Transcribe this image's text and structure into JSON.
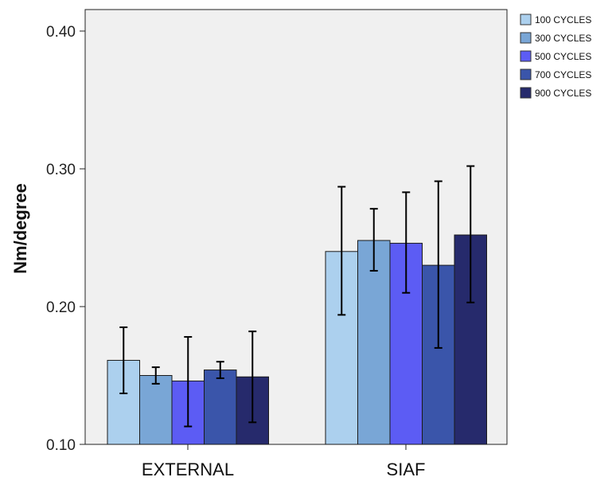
{
  "chart_data": {
    "type": "bar",
    "title": "",
    "xlabel": "",
    "ylabel": "Nm/degree",
    "ylim": [
      0.1,
      0.42
    ],
    "yticks": [
      "0.10",
      "0.20",
      "0.30",
      "0.40"
    ],
    "ytick_values": [
      0.1,
      0.2,
      0.3,
      0.4
    ],
    "grid": false,
    "legend_position": "top-right outside",
    "categories": [
      "EXTERNAL",
      "SIAF"
    ],
    "series": [
      {
        "name": "100 CYCLES",
        "color": "#acd0ee",
        "values": [
          0.161,
          0.24
        ],
        "err_low": [
          0.137,
          0.194
        ],
        "err_high": [
          0.185,
          0.287
        ]
      },
      {
        "name": "300 CYCLES",
        "color": "#79a6d6",
        "values": [
          0.15,
          0.248
        ],
        "err_low": [
          0.144,
          0.226
        ],
        "err_high": [
          0.156,
          0.271
        ]
      },
      {
        "name": "500 CYCLES",
        "color": "#5c5cf4",
        "values": [
          0.146,
          0.246
        ],
        "err_low": [
          0.113,
          0.21
        ],
        "err_high": [
          0.178,
          0.283
        ]
      },
      {
        "name": "700 CYCLES",
        "color": "#3a55aa",
        "values": [
          0.154,
          0.23
        ],
        "err_low": [
          0.148,
          0.17
        ],
        "err_high": [
          0.16,
          0.291
        ]
      },
      {
        "name": "900 CYCLES",
        "color": "#262a6c",
        "values": [
          0.149,
          0.252
        ],
        "err_low": [
          0.116,
          0.203
        ],
        "err_high": [
          0.182,
          0.302
        ]
      }
    ]
  }
}
